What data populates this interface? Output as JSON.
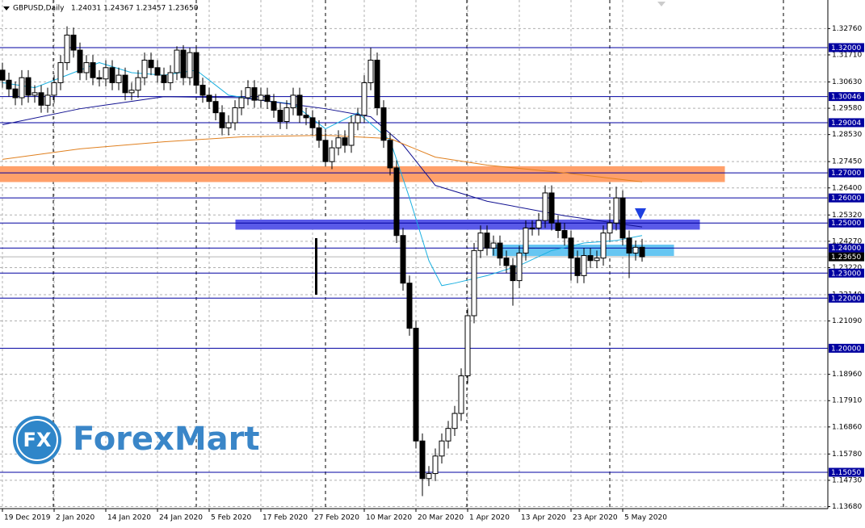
{
  "header": {
    "symbol": "GBPUSD,Daily",
    "quote": "1.24031 1.24367 1.23457 1.23650"
  },
  "logo": {
    "badge": "FX",
    "name": "ForexMart"
  },
  "chart_data": {
    "type": "candlestick",
    "categories": [
      "19 Dec 2019",
      null,
      null,
      null,
      null,
      null,
      null,
      null,
      "2 Jan 2020",
      null,
      null,
      null,
      null,
      null,
      null,
      null,
      "14 Jan 2020",
      null,
      null,
      null,
      null,
      null,
      null,
      null,
      "24 Jan 2020",
      null,
      null,
      null,
      null,
      null,
      null,
      null,
      "5 Feb 2020",
      null,
      null,
      null,
      null,
      null,
      null,
      null,
      "17 Feb 2020",
      null,
      null,
      null,
      null,
      null,
      null,
      null,
      "27 Feb 2020",
      null,
      null,
      null,
      null,
      null,
      null,
      null,
      "10 Mar 2020",
      null,
      null,
      null,
      null,
      null,
      null,
      null,
      "20 Mar 2020",
      null,
      null,
      null,
      null,
      null,
      null,
      null,
      "1 Apr 2020",
      null,
      null,
      null,
      null,
      null,
      null,
      null,
      "13 Apr 2020",
      null,
      null,
      null,
      null,
      null,
      null,
      null,
      "23 Apr 2020",
      null,
      null,
      null,
      null,
      null,
      null,
      null,
      "5 May 2020",
      null,
      null,
      null
    ],
    "open": [
      1.311,
      1.307,
      1.3035,
      1.3,
      1.308,
      1.301,
      1.302,
      1.297,
      1.301,
      1.306,
      1.314,
      1.325,
      1.319,
      1.31,
      1.314,
      1.308,
      1.3075,
      1.312,
      1.306,
      1.309,
      1.302,
      1.303,
      1.308,
      1.315,
      1.312,
      1.309,
      1.306,
      1.31,
      1.319,
      1.308,
      1.318,
      1.305,
      1.301,
      1.2985,
      1.294,
      1.288,
      1.29,
      1.296,
      1.3,
      1.304,
      1.299,
      1.301,
      1.2985,
      1.295,
      1.2905,
      1.296,
      1.301,
      1.293,
      1.292,
      1.288,
      1.283,
      1.2745,
      1.28,
      1.284,
      1.281,
      1.29,
      1.293,
      1.306,
      1.315,
      1.296,
      1.283,
      1.272,
      1.245,
      1.226,
      1.208,
      1.163,
      1.148,
      1.15,
      1.157,
      1.163,
      1.168,
      1.174,
      1.189,
      1.213,
      1.239,
      1.246,
      1.24,
      1.242,
      1.236,
      1.233,
      1.227,
      1.238,
      1.248,
      1.248,
      1.251,
      1.262,
      1.25,
      1.247,
      1.244,
      1.236,
      1.229,
      1.237,
      1.235,
      1.236,
      1.246,
      1.25,
      1.26,
      1.244,
      1.238,
      1.24031
    ],
    "high": [
      1.314,
      1.31,
      1.3065,
      1.311,
      1.311,
      1.305,
      1.305,
      1.304,
      1.309,
      1.317,
      1.3285,
      1.328,
      1.322,
      1.317,
      1.317,
      1.311,
      1.315,
      1.315,
      1.312,
      1.312,
      1.306,
      1.311,
      1.318,
      1.318,
      1.315,
      1.312,
      1.313,
      1.3205,
      1.321,
      1.32,
      1.321,
      1.308,
      1.304,
      1.3015,
      1.297,
      1.293,
      1.299,
      1.303,
      1.307,
      1.307,
      1.304,
      1.304,
      1.3015,
      1.298,
      1.299,
      1.304,
      1.304,
      1.296,
      1.295,
      1.291,
      1.286,
      1.283,
      1.287,
      1.287,
      1.293,
      1.296,
      1.309,
      1.32,
      1.318,
      1.299,
      1.286,
      1.275,
      1.248,
      1.229,
      1.211,
      1.166,
      1.153,
      1.16,
      1.166,
      1.171,
      1.177,
      1.192,
      1.216,
      1.242,
      1.249,
      1.249,
      1.245,
      1.245,
      1.239,
      1.236,
      1.241,
      1.251,
      1.251,
      1.254,
      1.265,
      1.265,
      1.253,
      1.25,
      1.247,
      1.239,
      1.24,
      1.24,
      1.239,
      1.249,
      1.253,
      1.2645,
      1.263,
      1.247,
      1.243,
      1.24367
    ],
    "low": [
      1.304,
      1.3005,
      1.297,
      1.297,
      1.298,
      1.298,
      1.294,
      1.294,
      1.298,
      1.303,
      1.311,
      1.316,
      1.307,
      1.307,
      1.305,
      1.3045,
      1.3045,
      1.303,
      1.303,
      1.299,
      1.299,
      1.3,
      1.305,
      1.309,
      1.306,
      1.303,
      1.303,
      1.307,
      1.305,
      1.305,
      1.302,
      1.298,
      1.2955,
      1.291,
      1.285,
      1.285,
      1.287,
      1.293,
      1.297,
      1.296,
      1.296,
      1.2955,
      1.292,
      1.2875,
      1.2875,
      1.293,
      1.29,
      1.289,
      1.285,
      1.28,
      1.2725,
      1.2715,
      1.277,
      1.278,
      1.278,
      1.287,
      1.29,
      1.303,
      1.293,
      1.28,
      1.269,
      1.242,
      1.223,
      1.205,
      1.16,
      1.141,
      1.145,
      1.147,
      1.154,
      1.16,
      1.165,
      1.171,
      1.186,
      1.21,
      1.236,
      1.237,
      1.237,
      1.233,
      1.23,
      1.217,
      1.224,
      1.235,
      1.245,
      1.245,
      1.248,
      1.247,
      1.244,
      1.241,
      1.227,
      1.226,
      1.226,
      1.232,
      1.232,
      1.233,
      1.243,
      1.247,
      1.241,
      1.228,
      1.235,
      1.23457
    ],
    "close": [
      1.307,
      1.3035,
      1.3,
      1.308,
      1.301,
      1.302,
      1.297,
      1.301,
      1.306,
      1.314,
      1.325,
      1.319,
      1.31,
      1.314,
      1.308,
      1.3075,
      1.312,
      1.306,
      1.309,
      1.302,
      1.303,
      1.308,
      1.315,
      1.312,
      1.309,
      1.306,
      1.31,
      1.319,
      1.308,
      1.318,
      1.305,
      1.301,
      1.2985,
      1.294,
      1.288,
      1.29,
      1.296,
      1.3,
      1.304,
      1.299,
      1.301,
      1.2985,
      1.295,
      1.2905,
      1.296,
      1.301,
      1.293,
      1.292,
      1.288,
      1.283,
      1.2745,
      1.28,
      1.284,
      1.281,
      1.29,
      1.293,
      1.306,
      1.315,
      1.296,
      1.283,
      1.272,
      1.245,
      1.226,
      1.208,
      1.163,
      1.148,
      1.15,
      1.157,
      1.163,
      1.168,
      1.174,
      1.189,
      1.213,
      1.239,
      1.246,
      1.24,
      1.242,
      1.236,
      1.233,
      1.227,
      1.238,
      1.248,
      1.248,
      1.251,
      1.262,
      1.25,
      1.247,
      1.244,
      1.236,
      1.229,
      1.237,
      1.235,
      1.236,
      1.246,
      1.25,
      1.26,
      1.244,
      1.238,
      1.2403,
      1.2365
    ],
    "indicators": [
      {
        "color": "#1ab0e0",
        "x": [
          0,
          5,
          10,
          15,
          20,
          25,
          30,
          35,
          40,
          45,
          50,
          55,
          60,
          63,
          66,
          68,
          70,
          75,
          80,
          85,
          90,
          95,
          99
        ],
        "values": [
          1.306,
          1.304,
          1.309,
          1.314,
          1.31,
          1.309,
          1.311,
          1.301,
          1.299,
          1.2975,
          1.2876,
          1.294,
          1.283,
          1.26,
          1.235,
          1.225,
          1.226,
          1.229,
          1.233,
          1.239,
          1.242,
          1.243,
          1.245
        ]
      },
      {
        "color": "#101090",
        "x": [
          0,
          12,
          25,
          37,
          50,
          57,
          62,
          67,
          75,
          87,
          99
        ],
        "values": [
          1.2892,
          1.2956,
          1.3004,
          1.3,
          1.2956,
          1.2924,
          1.2812,
          1.265,
          1.2587,
          1.2529,
          1.2484
        ]
      },
      {
        "color": "#e08020",
        "x": [
          0,
          12,
          25,
          37,
          50,
          60,
          67,
          75,
          87,
          99
        ],
        "values": [
          1.2754,
          1.2796,
          1.2824,
          1.2844,
          1.285,
          1.2837,
          1.2763,
          1.2731,
          1.27,
          1.2664
        ]
      }
    ],
    "zones": [
      {
        "from": 1.2665,
        "to": 1.2725,
        "color": "#ffa06a"
      },
      {
        "from": 1.2475,
        "to": 1.2512,
        "color": "#5a5ae8"
      },
      {
        "from": 1.237,
        "to": 1.2412,
        "color": "#66c6f2"
      }
    ],
    "levels": [
      {
        "value": 1.32,
        "label": "1.32000"
      },
      {
        "value": 1.30046,
        "label": "1.30046"
      },
      {
        "value": 1.29004,
        "label": "1.29004"
      },
      {
        "value": 1.27,
        "label": "1.27000"
      },
      {
        "value": 1.26,
        "label": "1.26000"
      },
      {
        "value": 1.25,
        "label": "1.25000"
      },
      {
        "value": 1.24,
        "label": "1.24000"
      },
      {
        "value": 1.23,
        "label": "1.23000"
      },
      {
        "value": 1.22,
        "label": "1.22000"
      },
      {
        "value": 1.2,
        "label": "1.20000"
      },
      {
        "value": 1.1505,
        "label": "1.15050"
      }
    ],
    "level_color": "#0000a0",
    "last_price": {
      "value": 1.2365,
      "label": "1.23650"
    },
    "ylim": [
      1.136,
      1.339
    ],
    "yticks": [
      {
        "value": 1.3276,
        "label": "1.32760"
      },
      {
        "value": 1.3171,
        "label": "1.31710"
      },
      {
        "value": 1.3063,
        "label": "1.30630"
      },
      {
        "value": 1.2958,
        "label": "1.29580"
      },
      {
        "value": 1.2853,
        "label": "1.28530"
      },
      {
        "value": 1.2745,
        "label": "1.27450"
      },
      {
        "value": 1.264,
        "label": "1.26400"
      },
      {
        "value": 1.2532,
        "label": "1.25320"
      },
      {
        "value": 1.2427,
        "label": "1.24270"
      },
      {
        "value": 1.2322,
        "label": "1.23220"
      },
      {
        "value": 1.2214,
        "label": "1.22140"
      },
      {
        "value": 1.2109,
        "label": "1.21090"
      },
      {
        "value": 1.1896,
        "label": "1.18960"
      },
      {
        "value": 1.1791,
        "label": "1.17910"
      },
      {
        "value": 1.1686,
        "label": "1.16860"
      },
      {
        "value": 1.1578,
        "label": "1.15780"
      },
      {
        "value": 1.1473,
        "label": "1.14730"
      },
      {
        "value": 1.1368,
        "label": "1.13680"
      }
    ],
    "grid": true
  }
}
